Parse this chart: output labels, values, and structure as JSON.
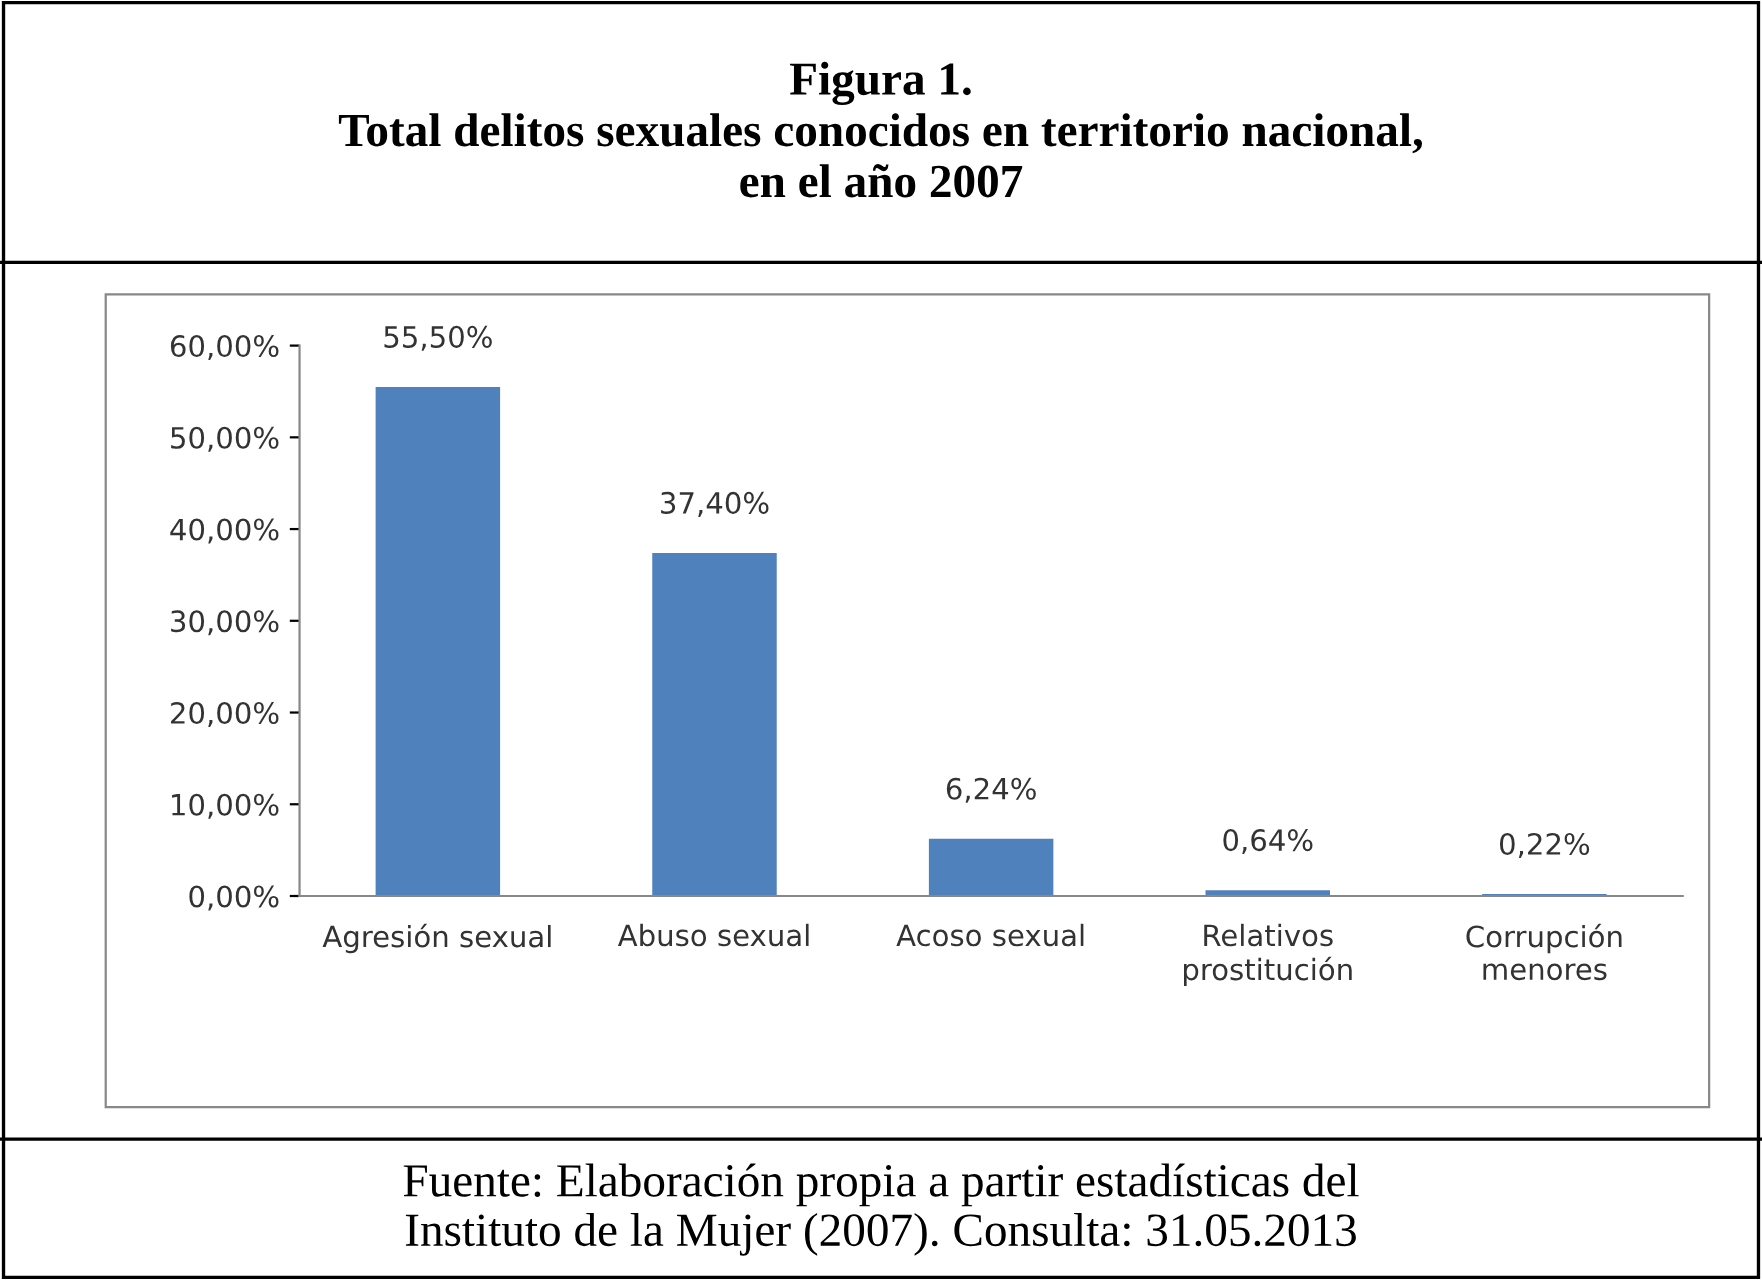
{
  "chart_data": {
    "type": "bar",
    "title": "Figura 1.\nTotal delitos sexuales conocidos en territorio nacional,\nen el año 2007",
    "categories": [
      "Agresión sexual",
      "Abuso sexual",
      "Acoso sexual",
      "Relativos\nprostitución",
      "Corrupción\nmenores"
    ],
    "values": [
      55.5,
      37.4,
      6.24,
      0.64,
      0.22
    ],
    "value_labels": [
      "55,50%",
      "37,40%",
      "6,24%",
      "0,64%",
      "0,22%"
    ],
    "color": "#4f81bd",
    "ylim": [
      0,
      60
    ],
    "yticks": [
      {
        "value": 0,
        "label": "0,00%"
      },
      {
        "value": 10,
        "label": "10,00%"
      },
      {
        "value": 20,
        "label": "20,00%"
      },
      {
        "value": 30,
        "label": "30,00%"
      },
      {
        "value": 40,
        "label": "40,00%"
      },
      {
        "value": 50,
        "label": "50,00%"
      },
      {
        "value": 60,
        "label": "60,00%"
      }
    ],
    "annotations": [
      "Fuente: Elaboración propia a partir estadísticas del\nInstituto de la Mujer (2007). Consulta: 31.05.2013"
    ]
  }
}
